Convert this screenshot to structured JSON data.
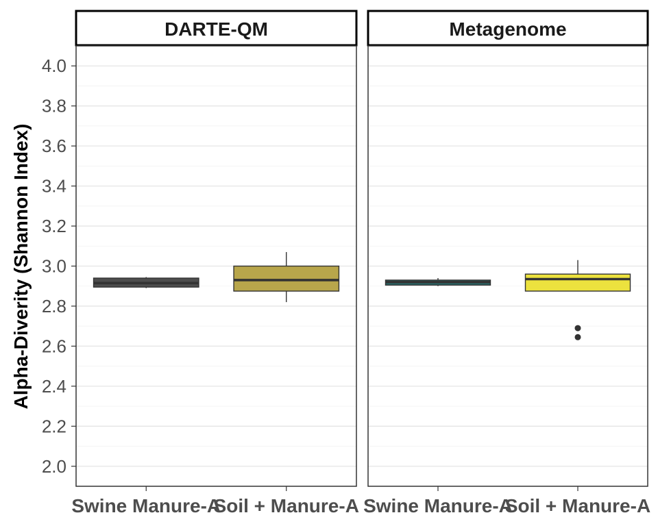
{
  "chart_data": {
    "type": "box",
    "title": "",
    "ylabel": "Alpha-Diverity (Shannon Index)",
    "xlabel": "",
    "ylim": [
      1.9,
      4.1
    ],
    "y_ticks": [
      "2.0",
      "2.2",
      "2.4",
      "2.6",
      "2.8",
      "3.0",
      "3.2",
      "3.4",
      "3.6",
      "3.8",
      "4.0"
    ],
    "grid": true,
    "legend": "none",
    "categories": [
      "Swine Manure-A",
      "Soil + Manure-A"
    ],
    "panels": [
      {
        "label": "DARTE-QM",
        "boxes": [
          {
            "category": "Swine Manure-A",
            "min": 2.89,
            "q1": 2.895,
            "median": 2.915,
            "q3": 2.94,
            "max": 2.945,
            "outliers": [],
            "fill": "#4d4d4d"
          },
          {
            "category": "Soil + Manure-A",
            "min": 2.82,
            "q1": 2.875,
            "median": 2.93,
            "q3": 3.0,
            "max": 3.07,
            "outliers": [],
            "fill": "#b8a64b"
          }
        ]
      },
      {
        "label": "Metagenome",
        "boxes": [
          {
            "category": "Swine Manure-A",
            "min": 2.9,
            "q1": 2.905,
            "median": 2.92,
            "q3": 2.93,
            "max": 2.94,
            "outliers": [],
            "fill": "#2a6b6b"
          },
          {
            "category": "Soil + Manure-A",
            "min": 2.875,
            "q1": 2.875,
            "median": 2.935,
            "q3": 2.96,
            "max": 3.03,
            "outliers": [
              2.69,
              2.645
            ],
            "fill": "#ece23e"
          }
        ]
      }
    ]
  }
}
